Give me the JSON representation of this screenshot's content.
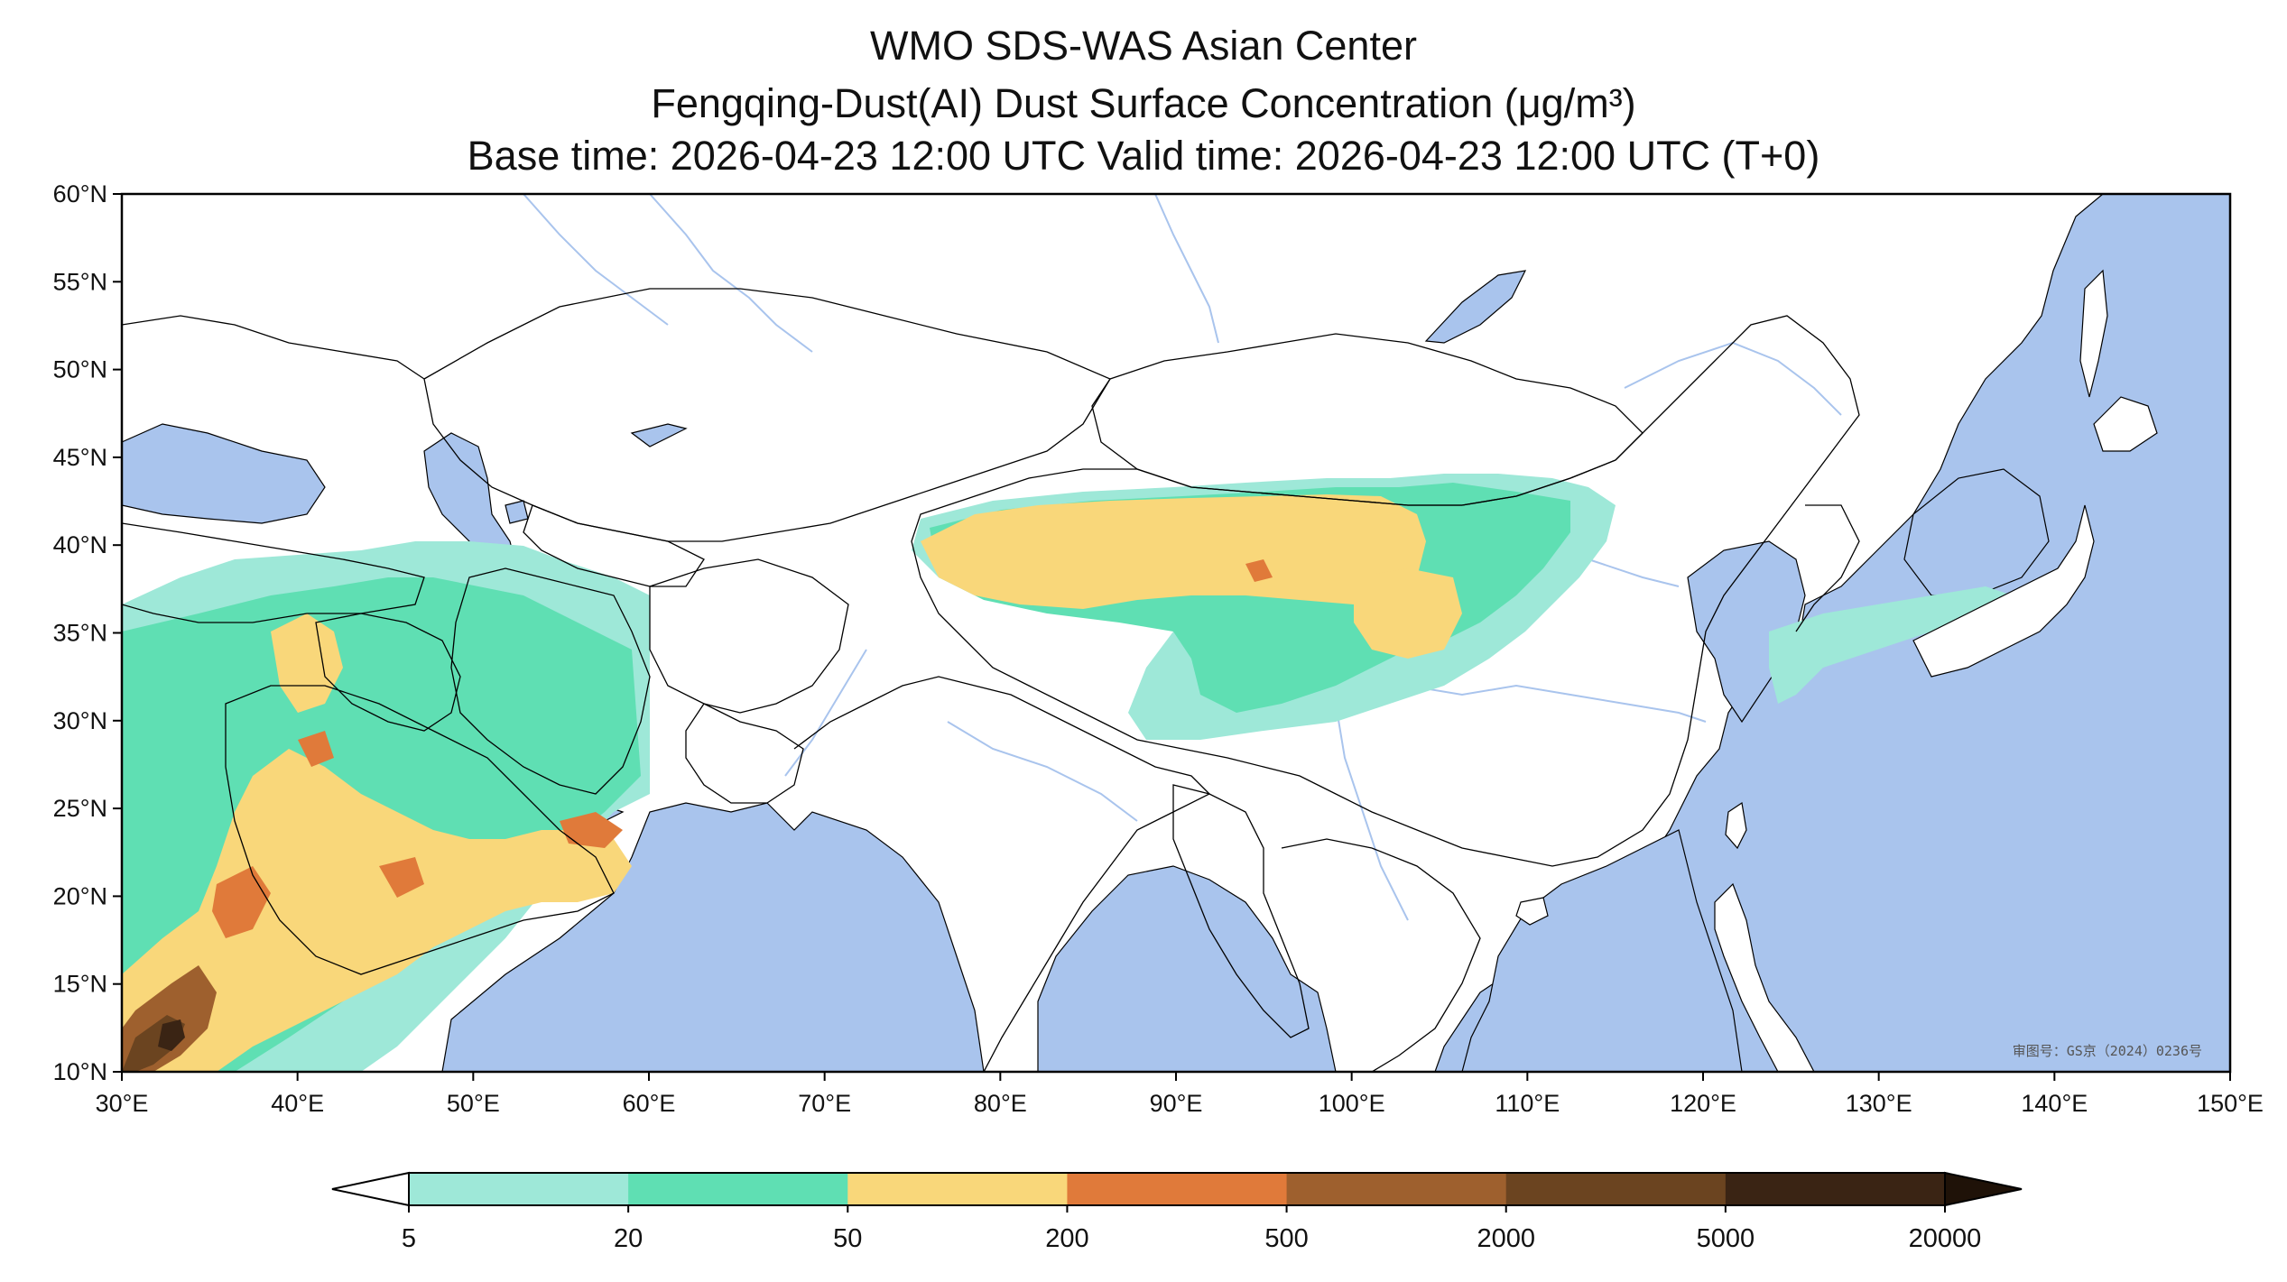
{
  "titles": {
    "line1": "WMO SDS-WAS Asian Center",
    "line2": "Fengqing-Dust(AI) Dust Surface Concentration (μg/m³)",
    "line3": "Base time: 2026-04-23 12:00 UTC Valid time: 2026-04-23 12:00 UTC (T+0)"
  },
  "map": {
    "extent": {
      "lon": [
        30,
        150
      ],
      "lat": [
        10,
        60
      ]
    },
    "x_ticks": [
      "30°E",
      "40°E",
      "50°E",
      "60°E",
      "70°E",
      "80°E",
      "90°E",
      "100°E",
      "110°E",
      "120°E",
      "130°E",
      "140°E",
      "150°E"
    ],
    "y_ticks": [
      "60°N",
      "55°N",
      "50°N",
      "45°N",
      "40°N",
      "35°N",
      "30°N",
      "25°N",
      "20°N",
      "15°N",
      "10°N"
    ],
    "approval_text": "审图号：GS京（2024）0236号",
    "colors": {
      "ocean": "#a9c4ed",
      "land": "#ffffff",
      "border": "#000000",
      "river": "#a9c4ed"
    }
  },
  "legend": {
    "bins": [
      {
        "color": "#9ee8d8"
      },
      {
        "color": "#5fdfb3"
      },
      {
        "color": "#f9d77a"
      },
      {
        "color": "#e07a3a"
      },
      {
        "color": "#9e602e"
      },
      {
        "color": "#6b4420"
      },
      {
        "color": "#3a2414"
      }
    ],
    "under_color": "#ffffff",
    "over_color": "#1f1208",
    "labels": [
      "5",
      "20",
      "50",
      "200",
      "500",
      "2000",
      "5000",
      "20000"
    ]
  }
}
